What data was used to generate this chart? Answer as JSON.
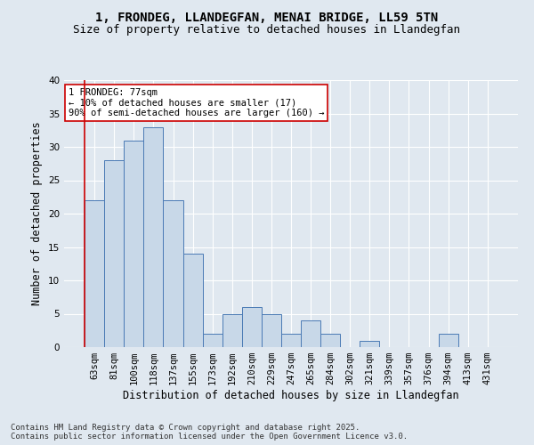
{
  "title1": "1, FRONDEG, LLANDEGFAN, MENAI BRIDGE, LL59 5TN",
  "title2": "Size of property relative to detached houses in Llandegfan",
  "xlabel": "Distribution of detached houses by size in Llandegfan",
  "ylabel": "Number of detached properties",
  "categories": [
    "63sqm",
    "81sqm",
    "100sqm",
    "118sqm",
    "137sqm",
    "155sqm",
    "173sqm",
    "192sqm",
    "210sqm",
    "229sqm",
    "247sqm",
    "265sqm",
    "284sqm",
    "302sqm",
    "321sqm",
    "339sqm",
    "357sqm",
    "376sqm",
    "394sqm",
    "413sqm",
    "431sqm"
  ],
  "values": [
    22,
    28,
    31,
    33,
    22,
    14,
    2,
    5,
    6,
    5,
    2,
    4,
    2,
    0,
    1,
    0,
    0,
    0,
    2,
    0,
    0
  ],
  "bar_color": "#c8d8e8",
  "bar_edge_color": "#4a7ab5",
  "background_color": "#e0e8f0",
  "grid_color": "#ffffff",
  "annotation_line1": "1 FRONDEG: 77sqm",
  "annotation_line2": "← 10% of detached houses are smaller (17)",
  "annotation_line3": "90% of semi-detached houses are larger (160) →",
  "annotation_box_color": "#ffffff",
  "annotation_box_edge_color": "#cc0000",
  "vline_color": "#cc0000",
  "ylim": [
    0,
    40
  ],
  "yticks": [
    0,
    5,
    10,
    15,
    20,
    25,
    30,
    35,
    40
  ],
  "footer_text": "Contains HM Land Registry data © Crown copyright and database right 2025.\nContains public sector information licensed under the Open Government Licence v3.0.",
  "title1_fontsize": 10,
  "title2_fontsize": 9,
  "xlabel_fontsize": 8.5,
  "ylabel_fontsize": 8.5,
  "tick_fontsize": 7.5,
  "annotation_fontsize": 7.5,
  "footer_fontsize": 6.5
}
